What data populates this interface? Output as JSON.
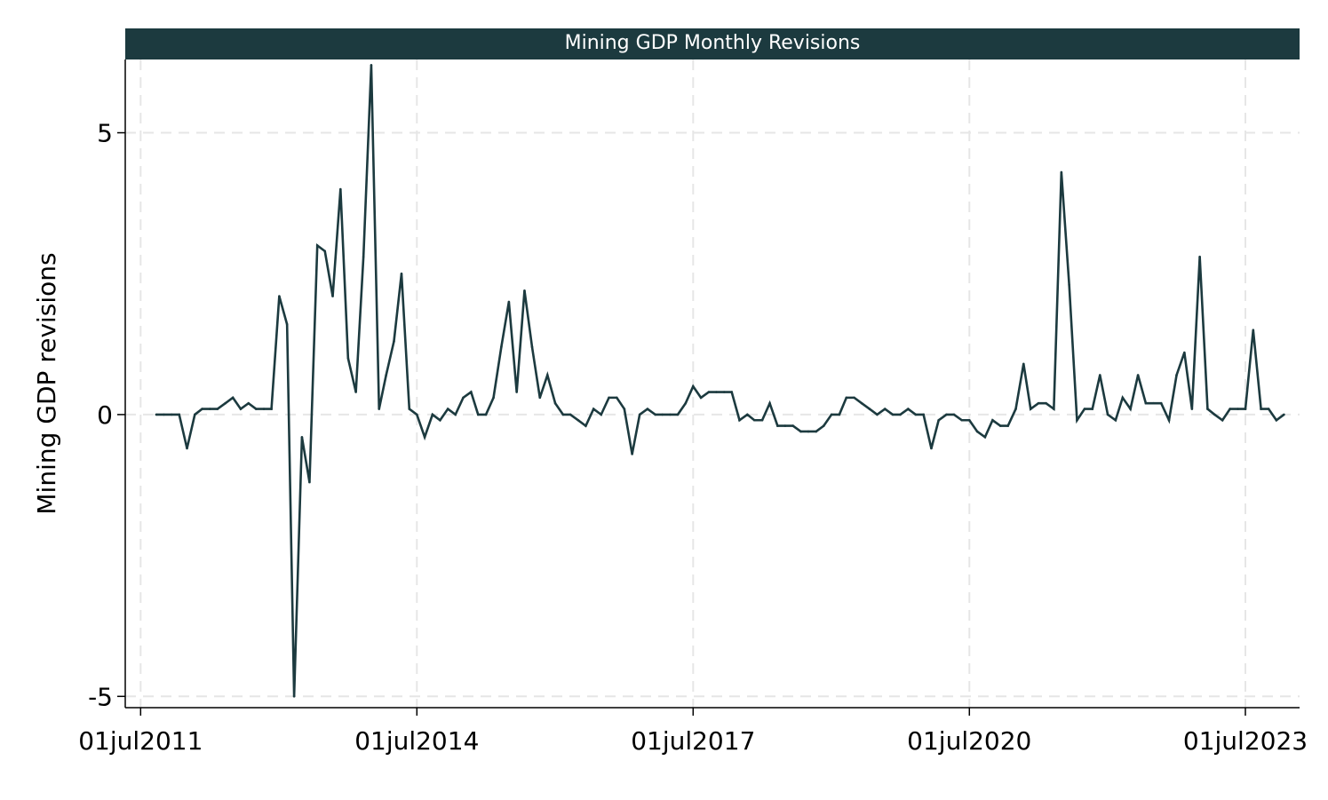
{
  "chart_data": {
    "type": "line",
    "title": "Mining GDP Monthly Revisions",
    "xlabel": "",
    "ylabel": "Mining GDP revisions",
    "xlim": [
      "2011-05-01",
      "2024-02-01"
    ],
    "ylim": [
      -5.2,
      6.3
    ],
    "x_ticks": [
      {
        "date": "2011-07-01",
        "label": "01jul2011"
      },
      {
        "date": "2014-07-01",
        "label": "01jul2014"
      },
      {
        "date": "2017-07-01",
        "label": "01jul2017"
      },
      {
        "date": "2020-07-01",
        "label": "01jul2020"
      },
      {
        "date": "2023-07-01",
        "label": "01jul2023"
      }
    ],
    "y_ticks": [
      {
        "value": 5,
        "label": "5"
      },
      {
        "value": 0,
        "label": "0"
      },
      {
        "value": -5,
        "label": "-5"
      }
    ],
    "grid": true,
    "legend": "none",
    "colors": {
      "line": "#1c3a3f",
      "title_bar": "#1c3a3f",
      "title_text": "#ffffff",
      "grid": "#e6e6e6",
      "axis": "#000000"
    },
    "series": [
      {
        "x": [
          "2011-09-01",
          "2011-10-01",
          "2011-11-01",
          "2011-12-01",
          "2012-01-01",
          "2012-02-01",
          "2012-03-01",
          "2012-04-01",
          "2012-05-01",
          "2012-06-01",
          "2012-07-01",
          "2012-08-01",
          "2012-09-01",
          "2012-10-01",
          "2012-11-01",
          "2012-12-01",
          "2013-01-01",
          "2013-02-01",
          "2013-03-01",
          "2013-04-01",
          "2013-05-01",
          "2013-06-01",
          "2013-07-01",
          "2013-08-01",
          "2013-09-01",
          "2013-10-01",
          "2013-11-01",
          "2013-12-01",
          "2014-01-01",
          "2014-02-01",
          "2014-03-01",
          "2014-04-01",
          "2014-05-01",
          "2014-06-01",
          "2014-07-01",
          "2014-08-01",
          "2014-09-01",
          "2014-10-01",
          "2014-11-01",
          "2014-12-01",
          "2015-01-01",
          "2015-02-01",
          "2015-03-01",
          "2015-04-01",
          "2015-05-01",
          "2015-06-01",
          "2015-07-01",
          "2015-08-01",
          "2015-09-01",
          "2015-10-01",
          "2015-11-01",
          "2015-12-01",
          "2016-01-01",
          "2016-02-01",
          "2016-03-01",
          "2016-04-01",
          "2016-05-01",
          "2016-06-01",
          "2016-07-01",
          "2016-08-01",
          "2016-09-01",
          "2016-10-01",
          "2016-11-01",
          "2016-12-01",
          "2017-01-01",
          "2017-02-01",
          "2017-03-01",
          "2017-04-01",
          "2017-05-01",
          "2017-06-01",
          "2017-07-01",
          "2017-08-01",
          "2017-09-01",
          "2017-10-01",
          "2017-11-01",
          "2017-12-01",
          "2018-01-01",
          "2018-02-01",
          "2018-03-01",
          "2018-04-01",
          "2018-05-01",
          "2018-06-01",
          "2018-07-01",
          "2018-08-01",
          "2018-09-01",
          "2018-10-01",
          "2018-11-01",
          "2018-12-01",
          "2019-01-01",
          "2019-02-01",
          "2019-03-01",
          "2019-04-01",
          "2019-05-01",
          "2019-06-01",
          "2019-07-01",
          "2019-08-01",
          "2019-09-01",
          "2019-10-01",
          "2019-11-01",
          "2019-12-01",
          "2020-01-01",
          "2020-02-01",
          "2020-03-01",
          "2020-04-01",
          "2020-05-01",
          "2020-06-01",
          "2020-07-01",
          "2020-08-01",
          "2020-09-01",
          "2020-10-01",
          "2020-11-01",
          "2020-12-01",
          "2021-01-01",
          "2021-02-01",
          "2021-03-01",
          "2021-04-01",
          "2021-05-01",
          "2021-06-01",
          "2021-07-01",
          "2021-08-01",
          "2021-09-01",
          "2021-10-01",
          "2021-11-01",
          "2021-12-01",
          "2022-01-01",
          "2022-02-01",
          "2022-03-01",
          "2022-04-01",
          "2022-05-01",
          "2022-06-01",
          "2022-07-01",
          "2022-08-01",
          "2022-09-01",
          "2022-10-01",
          "2022-11-01",
          "2022-12-01",
          "2023-01-01",
          "2023-02-01",
          "2023-03-01",
          "2023-04-01",
          "2023-05-01",
          "2023-06-01",
          "2023-07-01",
          "2023-08-01",
          "2023-09-01",
          "2023-10-01",
          "2023-11-01",
          "2023-12-01"
        ],
        "values": [
          0,
          0,
          0,
          0,
          -0.6,
          0,
          0.1,
          0.1,
          0.1,
          0.2,
          0.3,
          0.1,
          0.2,
          0.1,
          0.1,
          0.1,
          2.1,
          1.6,
          -5.0,
          -0.4,
          -1.2,
          3.0,
          2.9,
          2.1,
          4.0,
          1.0,
          0.4,
          2.8,
          6.2,
          0.1,
          0.7,
          1.3,
          2.5,
          0.1,
          0,
          -0.4,
          0,
          -0.1,
          0.1,
          0,
          0.3,
          0.4,
          0,
          0,
          0.3,
          1.2,
          2.0,
          0.4,
          2.2,
          1.2,
          0.3,
          0.7,
          0.2,
          0,
          0,
          -0.1,
          -0.2,
          0.1,
          0,
          0.3,
          0.3,
          0.1,
          -0.7,
          0,
          0.1,
          0,
          0,
          0,
          0,
          0.2,
          0.5,
          0.3,
          0.4,
          0.4,
          0.4,
          0.4,
          -0.1,
          0,
          -0.1,
          -0.1,
          0.2,
          -0.2,
          -0.2,
          -0.2,
          -0.3,
          -0.3,
          -0.3,
          -0.2,
          0,
          0,
          0.3,
          0.3,
          0.2,
          0.1,
          0,
          0.1,
          0,
          0,
          0.1,
          0,
          0,
          -0.6,
          -0.1,
          0,
          0,
          -0.1,
          -0.1,
          -0.3,
          -0.4,
          -0.1,
          -0.2,
          -0.2,
          0.1,
          0.9,
          0.1,
          0.2,
          0.2,
          0.1,
          4.3,
          2.3,
          -0.1,
          0.1,
          0.1,
          0.7,
          0,
          -0.1,
          0.3,
          0.1,
          0.7,
          0.2,
          0.2,
          0.2,
          -0.1,
          0.7,
          1.1,
          0.1,
          2.8,
          0.1,
          0,
          -0.1,
          0.1,
          0.1,
          0.1,
          1.5,
          0.1,
          0.1,
          -0.1,
          0
        ]
      }
    ]
  }
}
